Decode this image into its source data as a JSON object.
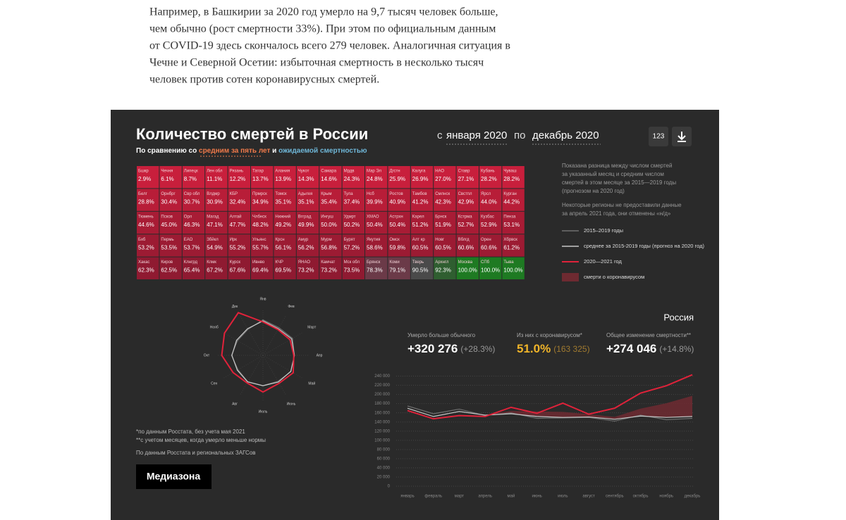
{
  "article": {
    "lines": [
      "Например, в Башкирии за 2020 год умерло на 9,7 тысяч человек больше,",
      "чем обычно (рост смертности 33%). При этом по официальным данным",
      "от COVID-19 здесь скончалось всего 279 человек. Аналогичная ситуация в",
      "Чечне и Северной Осетии: избыточная смертность в несколько тысяч",
      "человек против сотен коронавирусных смертей."
    ]
  },
  "widget": {
    "title": "Количество смертей в России",
    "subtitle": {
      "prefix": "По сравнению со",
      "average": "средним за пять лет",
      "and": "и",
      "expected": "ожидаемой смертностью"
    },
    "period": {
      "from_word": "с",
      "from": "января 2020",
      "to_word": "по",
      "to": "декабрь 2020"
    },
    "button": "123",
    "note": [
      "Показана разница между числом смертей",
      "за указанный месяц и средним числом",
      "смертей в этом месяце за 2015—2019 годы",
      "(прогнозом на 2020 год)"
    ],
    "note2": [
      "Некоторые регионы не предоставили данные",
      "за апрель 2021 года, они отменены «н/д»"
    ],
    "region": "Россия",
    "stats": [
      {
        "label": "Умерло больше обычного",
        "value": "+320 276",
        "extra": "(+28.3%)"
      },
      {
        "label": "Из них с коронавирусом*",
        "value": "51.0%",
        "extra": "(163 325)"
      },
      {
        "label": "Общее изменение смертности**",
        "value": "+274 046",
        "extra": "(+14.8%)"
      }
    ],
    "footnotes": [
      "*по данным Росстата, без учета мая 2021",
      "**с учетом месяцев, когда умерло меньше нормы"
    ],
    "source": "По данным Росстата и региональных ЗАГСов",
    "brand": "Медиазона",
    "tiles": [
      {
        "name": "Бшкр",
        "value": "2.9%",
        "color": "#c81f3c"
      },
      {
        "name": "Чечня",
        "value": "6.1%",
        "color": "#c81f3c"
      },
      {
        "name": "Липецк",
        "value": "8.7%",
        "color": "#c81f3c"
      },
      {
        "name": "Лен обл",
        "value": "11.1%",
        "color": "#c81f3c"
      },
      {
        "name": "Рязань",
        "value": "12.2%",
        "color": "#c81f3c"
      },
      {
        "name": "Татар",
        "value": "13.7%",
        "color": "#c81f3c"
      },
      {
        "name": "Алания",
        "value": "13.9%",
        "color": "#c81f3c"
      },
      {
        "name": "Чукот",
        "value": "14.3%",
        "color": "#c81f3c"
      },
      {
        "name": "Самара",
        "value": "14.6%",
        "color": "#c81f3c"
      },
      {
        "name": "Мрдв",
        "value": "24.3%",
        "color": "#c81f3c"
      },
      {
        "name": "Мар Эл",
        "value": "24.8%",
        "color": "#c81f3c"
      },
      {
        "name": "Дгстн",
        "value": "25.9%",
        "color": "#c81f3c"
      },
      {
        "name": "Калуга",
        "value": "26.9%",
        "color": "#c81f3c"
      },
      {
        "name": "НАО",
        "value": "27.0%",
        "color": "#c81f3c"
      },
      {
        "name": "Ставр",
        "value": "27.1%",
        "color": "#c81f3c"
      },
      {
        "name": "Кубань",
        "value": "28.2%",
        "color": "#c81f3c"
      },
      {
        "name": "Чуваш",
        "value": "28.2%",
        "color": "#c81f3c"
      },
      {
        "name": "Белг",
        "value": "28.8%",
        "color": "#b81d38"
      },
      {
        "name": "Орнбрг",
        "value": "30.4%",
        "color": "#b81d38"
      },
      {
        "name": "Свр обл",
        "value": "30.7%",
        "color": "#b81d38"
      },
      {
        "name": "Влдмр",
        "value": "30.9%",
        "color": "#b81d38"
      },
      {
        "name": "КБР",
        "value": "32.4%",
        "color": "#b81d38"
      },
      {
        "name": "Прмрск",
        "value": "34.9%",
        "color": "#b81d38"
      },
      {
        "name": "Томск",
        "value": "35.1%",
        "color": "#b81d38"
      },
      {
        "name": "Адыгея",
        "value": "35.1%",
        "color": "#b81d38"
      },
      {
        "name": "Крым",
        "value": "35.4%",
        "color": "#b81d38"
      },
      {
        "name": "Тула",
        "value": "37.4%",
        "color": "#b81d38"
      },
      {
        "name": "Нсб",
        "value": "39.9%",
        "color": "#b81d38"
      },
      {
        "name": "Ростов",
        "value": "40.9%",
        "color": "#b81d38"
      },
      {
        "name": "Тамбов",
        "value": "41.2%",
        "color": "#b81d38"
      },
      {
        "name": "Смлнск",
        "value": "42.3%",
        "color": "#b81d38"
      },
      {
        "name": "Свстпл",
        "value": "42.9%",
        "color": "#b81d38"
      },
      {
        "name": "Ярсл",
        "value": "44.0%",
        "color": "#b81d38"
      },
      {
        "name": "Курган",
        "value": "44.2%",
        "color": "#b81d38"
      },
      {
        "name": "Тюмень",
        "value": "44.6%",
        "color": "#a81c35"
      },
      {
        "name": "Псков",
        "value": "45.0%",
        "color": "#a81c35"
      },
      {
        "name": "Орл",
        "value": "46.3%",
        "color": "#a81c35"
      },
      {
        "name": "Магад",
        "value": "47.1%",
        "color": "#a81c35"
      },
      {
        "name": "Алтай",
        "value": "47.7%",
        "color": "#a81c35"
      },
      {
        "name": "Члбнск",
        "value": "48.2%",
        "color": "#a81c35"
      },
      {
        "name": "Нижний",
        "value": "49.2%",
        "color": "#a81c35"
      },
      {
        "name": "Вгград",
        "value": "49.9%",
        "color": "#a81c35"
      },
      {
        "name": "Ингуш",
        "value": "50.0%",
        "color": "#a81c35"
      },
      {
        "name": "Удмрт",
        "value": "50.2%",
        "color": "#a81c35"
      },
      {
        "name": "ХМАО",
        "value": "50.4%",
        "color": "#a81c35"
      },
      {
        "name": "Астрхн",
        "value": "50.4%",
        "color": "#a81c35"
      },
      {
        "name": "Карел",
        "value": "51.2%",
        "color": "#a81c35"
      },
      {
        "name": "Брнск",
        "value": "51.9%",
        "color": "#a81c35"
      },
      {
        "name": "Кстрма",
        "value": "52.7%",
        "color": "#a81c35"
      },
      {
        "name": "Кузбас",
        "value": "52.9%",
        "color": "#a81c35"
      },
      {
        "name": "Пенза",
        "value": "53.1%",
        "color": "#a81c35"
      },
      {
        "name": "Бхб",
        "value": "53.2%",
        "color": "#9c1b33"
      },
      {
        "name": "Пермь",
        "value": "53.5%",
        "color": "#9c1b33"
      },
      {
        "name": "ЕАО",
        "value": "53.7%",
        "color": "#9c1b33"
      },
      {
        "name": "Збйкл",
        "value": "54.9%",
        "color": "#9c1b33"
      },
      {
        "name": "Ирк",
        "value": "55.2%",
        "color": "#9c1b33"
      },
      {
        "name": "Ульянс",
        "value": "55.7%",
        "color": "#9c1b33"
      },
      {
        "name": "Крсн",
        "value": "56.1%",
        "color": "#9c1b33"
      },
      {
        "name": "Амур",
        "value": "56.2%",
        "color": "#9c1b33"
      },
      {
        "name": "Мурм",
        "value": "56.8%",
        "color": "#9c1b33"
      },
      {
        "name": "Бурят",
        "value": "57.2%",
        "color": "#9c1b33"
      },
      {
        "name": "Якутия",
        "value": "58.6%",
        "color": "#9c1b33"
      },
      {
        "name": "Омск",
        "value": "59.8%",
        "color": "#9c1b33"
      },
      {
        "name": "Алт кр",
        "value": "60.5%",
        "color": "#9c1b33"
      },
      {
        "name": "Новг",
        "value": "60.5%",
        "color": "#9c1b33"
      },
      {
        "name": "Вблгд",
        "value": "60.6%",
        "color": "#9c1b33"
      },
      {
        "name": "Орен",
        "value": "60.6%",
        "color": "#9c1b33"
      },
      {
        "name": "Хбрвск",
        "value": "61.2%",
        "color": "#9c1b33"
      },
      {
        "name": "Хакас",
        "value": "62.3%",
        "color": "#8f1a31"
      },
      {
        "name": "Киров",
        "value": "62.5%",
        "color": "#8f1a31"
      },
      {
        "name": "Клнгрд",
        "value": "65.4%",
        "color": "#8f1a31"
      },
      {
        "name": "Клмк",
        "value": "67.2%",
        "color": "#8f1a31"
      },
      {
        "name": "Курск",
        "value": "67.6%",
        "color": "#8f1a31"
      },
      {
        "name": "Ивнво",
        "value": "69.4%",
        "color": "#8f1a31"
      },
      {
        "name": "КЧР",
        "value": "69.5%",
        "color": "#8f1a31"
      },
      {
        "name": "ЯНАО",
        "value": "73.2%",
        "color": "#8f1a31"
      },
      {
        "name": "Камчат",
        "value": "73.2%",
        "color": "#8f1a31"
      },
      {
        "name": "Мск обл",
        "value": "73.5%",
        "color": "#8f1a31"
      },
      {
        "name": "Брянск",
        "value": "78.3%",
        "color": "#6b3a48"
      },
      {
        "name": "Коми",
        "value": "79.1%",
        "color": "#6b3a48"
      },
      {
        "name": "Тверь",
        "value": "90.5%",
        "color": "#4a4a4a"
      },
      {
        "name": "Архнгл",
        "value": "92.3%",
        "color": "#2f5e30"
      },
      {
        "name": "Москва",
        "value": "100.0%",
        "color": "#1e7a22"
      },
      {
        "name": "СПб",
        "value": "100.0%",
        "color": "#1e7a22"
      },
      {
        "name": "Тыва",
        "value": "100.0%",
        "color": "#1e7a22"
      }
    ]
  },
  "chart_data": [
    {
      "type": "line",
      "categories": [
        "январь",
        "февраль",
        "март",
        "апрель",
        "май",
        "июнь",
        "июль",
        "август",
        "сентябрь",
        "октябрь",
        "ноябрь",
        "декабрь"
      ],
      "ylim": [
        0,
        250000
      ],
      "yticks": [
        0,
        {
          "value": 20000,
          "label": "20 000"
        },
        {
          "value": 40000,
          "label": "40 000"
        },
        {
          "value": 60000,
          "label": "60 000"
        },
        {
          "value": 80000,
          "label": "80 000"
        },
        {
          "value": 100000,
          "label": "100 000"
        },
        {
          "value": 120000,
          "label": "120 000"
        },
        {
          "value": 140000,
          "label": "140 000"
        },
        {
          "value": 160000,
          "label": "160 000"
        },
        {
          "value": 180000,
          "label": "180 000"
        },
        {
          "value": 200000,
          "label": "200 000"
        },
        {
          "value": 220000,
          "label": "220 000"
        },
        {
          "value": 240000,
          "label": "240 000"
        }
      ],
      "grid": true,
      "series": [
        {
          "name": "2015–2019 годы",
          "color": "#707070",
          "values": [
            175000,
            158000,
            168000,
            154000,
            160000,
            148000,
            149000,
            150000,
            142000,
            155000,
            145000,
            148000
          ]
        },
        {
          "name": "среднее за 2015-2019 годы (прогноз на 2020 год)",
          "color": "#c8c8c8",
          "values": [
            170000,
            152000,
            163000,
            155000,
            158000,
            152000,
            150000,
            151000,
            146000,
            153000,
            150000,
            152000
          ]
        },
        {
          "name": "2020—2021 год",
          "color": "#e0223a",
          "values": [
            165000,
            147000,
            154000,
            152000,
            172000,
            159000,
            181000,
            157000,
            170000,
            203000,
            219000,
            243000
          ]
        },
        {
          "name": "смерти о коронавирусом",
          "color": "#6e2a31",
          "stack_on": 1,
          "values": [
            0,
            0,
            0,
            1000,
            6000,
            11000,
            12000,
            6000,
            5000,
            16000,
            31000,
            45000
          ]
        }
      ]
    },
    {
      "type": "radar",
      "categories": [
        "Янв",
        "Фев",
        "Март",
        "Апр",
        "Май",
        "Июнь",
        "Июль",
        "Авг",
        "Сен",
        "Окт",
        "Нояб",
        "Дек"
      ],
      "rlim": [
        0,
        250000
      ],
      "series": [
        {
          "color": "#707070",
          "values": [
            175000,
            158000,
            168000,
            154000,
            160000,
            148000,
            149000,
            150000,
            142000,
            155000,
            145000,
            148000
          ]
        },
        {
          "color": "#c8c8c8",
          "values": [
            170000,
            152000,
            163000,
            155000,
            158000,
            152000,
            150000,
            151000,
            146000,
            153000,
            150000,
            152000
          ]
        },
        {
          "color": "#e0223a",
          "values": [
            165000,
            147000,
            154000,
            152000,
            172000,
            159000,
            181000,
            157000,
            170000,
            203000,
            219000,
            243000
          ]
        }
      ]
    }
  ]
}
